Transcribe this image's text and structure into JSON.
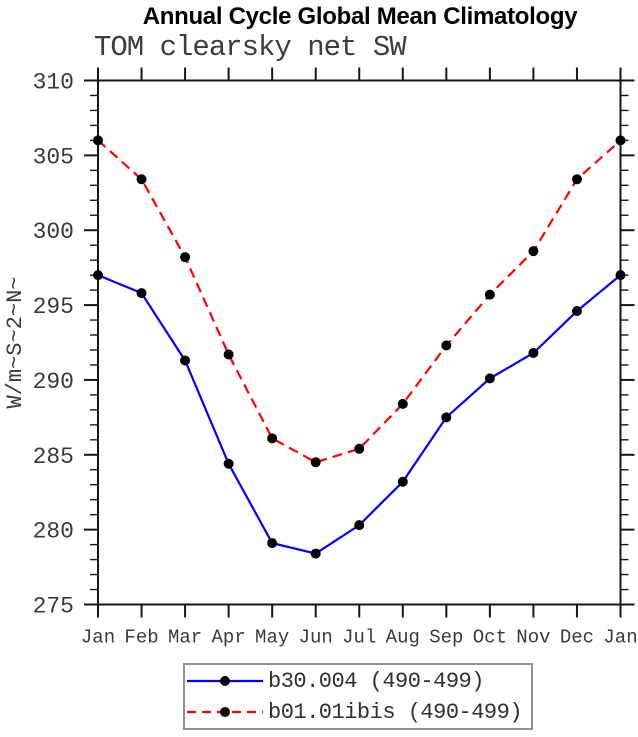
{
  "page": {
    "title": "Annual Cycle Global Mean Climatology",
    "subtitle": "TOM clearsky net SW"
  },
  "chart_data": {
    "type": "line",
    "title": "Annual Cycle Global Mean Climatology",
    "subtitle": "TOM clearsky net SW",
    "xlabel": "",
    "ylabel": "W/m~S~2~N~",
    "x_labels": [
      "Jan",
      "Feb",
      "Mar",
      "Apr",
      "May",
      "Jun",
      "Jul",
      "Aug",
      "Sep",
      "Oct",
      "Nov",
      "Dec",
      "Jan"
    ],
    "ylim": [
      275,
      310
    ],
    "y_major_step": 5,
    "y_minor_step": 1,
    "y_major_ticks": [
      275,
      280,
      285,
      290,
      295,
      300,
      305,
      310
    ],
    "grid": false,
    "legend_position": "bottom-center-boxed",
    "series": [
      {
        "name": "b30.004 (490-499)",
        "color": "#0000ff",
        "line_style": "solid",
        "marker": "filled-circle",
        "marker_color": "#000000",
        "values": [
          297.0,
          295.8,
          291.3,
          284.4,
          279.1,
          278.4,
          280.3,
          283.2,
          287.5,
          290.1,
          291.8,
          294.6,
          297.0
        ]
      },
      {
        "name": "b01.01ibis (490-499)",
        "color": "#ff0000",
        "line_style": "dashed",
        "marker": "filled-circle",
        "marker_color": "#000000",
        "values": [
          306.0,
          303.4,
          298.2,
          291.7,
          286.1,
          284.5,
          285.4,
          288.4,
          292.3,
          295.7,
          298.6,
          303.4,
          306.0
        ]
      }
    ]
  },
  "style": {
    "axis_color": "#161616",
    "tick_label_color": "#3a3a3a",
    "title_color": "#000000",
    "subtitle_color": "#3c3c3c",
    "legend_border_color": "#929292",
    "background_color": "#ffffff"
  }
}
